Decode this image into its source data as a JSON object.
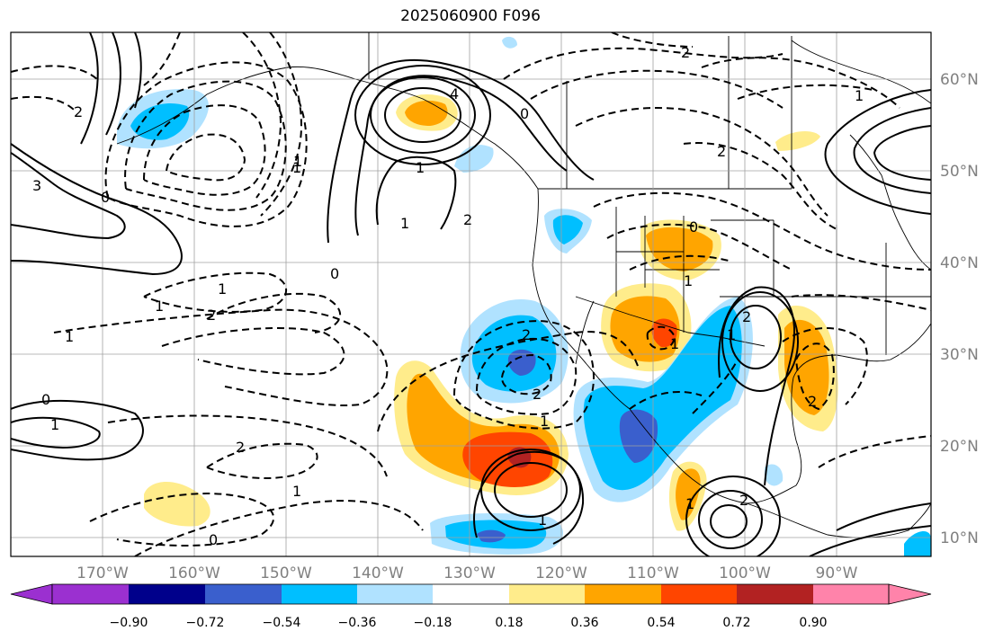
{
  "title": "2025060900 F096",
  "lat_labels": [
    "60°N",
    "50°N",
    "40°N",
    "30°N",
    "20°N",
    "10°N"
  ],
  "lon_labels": [
    "170°W",
    "160°W",
    "150°W",
    "140°W",
    "130°W",
    "120°W",
    "110°W",
    "100°W",
    "90°W"
  ],
  "colorbar": {
    "ticks": [
      "−0.90",
      "−0.72",
      "−0.54",
      "−0.36",
      "−0.18",
      "0.18",
      "0.36",
      "0.54",
      "0.72",
      "0.90"
    ],
    "colors": [
      "#9b30d0",
      "#00008b",
      "#3a5fcd",
      "#00bfff",
      "#b0e2ff",
      "#ffffff",
      "#ffec8b",
      "#ffa500",
      "#ff4500",
      "#b22222",
      "#ff83aa"
    ]
  },
  "contour_labels": [
    "2",
    "1",
    "0",
    "1",
    "2",
    "1",
    "1",
    "0",
    "2",
    "1",
    "1",
    "2",
    "1",
    "2",
    "1",
    "1",
    "2",
    "0",
    "1",
    "1",
    "2",
    "0",
    "2",
    "1",
    "1",
    "1",
    "2",
    "2",
    "1",
    "4",
    "3",
    "2",
    "1",
    "0",
    "0"
  ],
  "fill_colors": {
    "neg_light": "#b0e2ff",
    "neg_mid": "#00bfff",
    "neg_strong": "#3a5fcd",
    "pos_light": "#ffec8b",
    "pos_mid": "#ffa500",
    "pos_strong": "#ff4500",
    "pos_max": "#b22222"
  }
}
